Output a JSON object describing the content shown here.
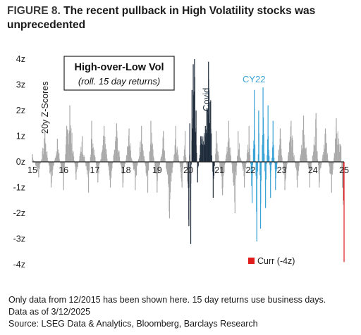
{
  "figure": {
    "label": "FIGURE 8.",
    "title": "The recent pullback in High Volatility stocks was unprecedented"
  },
  "chart_data": {
    "type": "bar",
    "inset_title": "High-over-Low Vol",
    "inset_subtitle": "(roll. 15 day returns)",
    "ylabel": "20y Z-Scores",
    "ylim": [
      -4,
      4
    ],
    "y_ticks": [
      "4z",
      "3z",
      "2z",
      "1z",
      "0z",
      "-1z",
      "-2z",
      "-3z",
      "-4z"
    ],
    "x_ticks": [
      "15",
      "16",
      "17",
      "18",
      "19",
      "20",
      "21",
      "22",
      "23",
      "24",
      "25"
    ],
    "xlim": [
      2015.0,
      2025.0
    ],
    "annotations": [
      {
        "text": "Covid",
        "color": "#1e2b3a"
      },
      {
        "text": "CY22",
        "color": "#3aa3d6"
      }
    ],
    "legend": {
      "label": "Curr (-4z)",
      "color": "#e01b1b",
      "placement": "bottom-right"
    },
    "colors": {
      "normal": "#a9a9a9",
      "covid": "#1e2b3a",
      "cy22": "#3aa3d6",
      "current": "#e01b1b"
    },
    "segments": [
      {
        "x": 2015.0,
        "y": 0.3
      },
      {
        "x": 2015.2,
        "y": -0.6
      },
      {
        "x": 2015.4,
        "y": 1.2
      },
      {
        "x": 2015.6,
        "y": -1.0
      },
      {
        "x": 2015.8,
        "y": 0.9
      },
      {
        "x": 2016.0,
        "y": -1.1
      },
      {
        "x": 2016.1,
        "y": 1.4
      },
      {
        "x": 2016.2,
        "y": 2.2
      },
      {
        "x": 2016.4,
        "y": -0.7
      },
      {
        "x": 2016.6,
        "y": 1.0
      },
      {
        "x": 2016.8,
        "y": -1.2
      },
      {
        "x": 2016.9,
        "y": 1.6
      },
      {
        "x": 2017.1,
        "y": -0.8
      },
      {
        "x": 2017.3,
        "y": 1.4
      },
      {
        "x": 2017.5,
        "y": -1.0
      },
      {
        "x": 2017.7,
        "y": 1.5
      },
      {
        "x": 2017.9,
        "y": -1.0
      },
      {
        "x": 2018.1,
        "y": 1.3
      },
      {
        "x": 2018.3,
        "y": -1.1
      },
      {
        "x": 2018.5,
        "y": 1.4
      },
      {
        "x": 2018.7,
        "y": -1.2
      },
      {
        "x": 2018.8,
        "y": 1.6
      },
      {
        "x": 2019.0,
        "y": -1.2
      },
      {
        "x": 2019.2,
        "y": 1.2
      },
      {
        "x": 2019.4,
        "y": -2.2
      },
      {
        "x": 2019.6,
        "y": 1.4
      },
      {
        "x": 2019.8,
        "y": -1.0
      },
      {
        "x": 2019.9,
        "y": 1.2
      },
      {
        "x": 2020.02,
        "y": -2.5
      },
      {
        "x": 2020.05,
        "y": 1.5
      },
      {
        "x": 2020.08,
        "y": -3.2
      },
      {
        "x": 2020.12,
        "y": 2.8
      },
      {
        "x": 2020.16,
        "y": 3.8
      },
      {
        "x": 2020.2,
        "y": 4.0
      },
      {
        "x": 2020.25,
        "y": 2.0
      },
      {
        "x": 2020.3,
        "y": -0.8
      },
      {
        "x": 2020.4,
        "y": 1.0
      },
      {
        "x": 2020.55,
        "y": 1.4
      },
      {
        "x": 2020.65,
        "y": 3.9
      },
      {
        "x": 2020.72,
        "y": 2.4
      },
      {
        "x": 2020.8,
        "y": -1.4
      },
      {
        "x": 2020.9,
        "y": 1.2
      },
      {
        "x": 2021.1,
        "y": -1.3
      },
      {
        "x": 2021.3,
        "y": 1.6
      },
      {
        "x": 2021.5,
        "y": -2.0
      },
      {
        "x": 2021.6,
        "y": 1.2
      },
      {
        "x": 2021.8,
        "y": -1.0
      },
      {
        "x": 2021.95,
        "y": 1.4
      },
      {
        "x": 2022.05,
        "y": -1.6
      },
      {
        "x": 2022.12,
        "y": 2.8
      },
      {
        "x": 2022.2,
        "y": -3.1
      },
      {
        "x": 2022.26,
        "y": 2.0
      },
      {
        "x": 2022.32,
        "y": -2.6
      },
      {
        "x": 2022.4,
        "y": 2.9
      },
      {
        "x": 2022.48,
        "y": -1.8
      },
      {
        "x": 2022.56,
        "y": 2.2
      },
      {
        "x": 2022.64,
        "y": -1.4
      },
      {
        "x": 2022.72,
        "y": 1.6
      },
      {
        "x": 2022.8,
        "y": -1.1
      },
      {
        "x": 2022.95,
        "y": 1.3
      },
      {
        "x": 2023.1,
        "y": -1.1
      },
      {
        "x": 2023.3,
        "y": 1.6
      },
      {
        "x": 2023.5,
        "y": -1.0
      },
      {
        "x": 2023.7,
        "y": 1.8
      },
      {
        "x": 2023.9,
        "y": -1.0
      },
      {
        "x": 2024.1,
        "y": 1.9
      },
      {
        "x": 2024.2,
        "y": -1.0
      },
      {
        "x": 2024.4,
        "y": 1.3
      },
      {
        "x": 2024.6,
        "y": -1.2
      },
      {
        "x": 2024.75,
        "y": 1.7
      },
      {
        "x": 2024.9,
        "y": 0.6
      },
      {
        "x": 2025.0,
        "y": -3.9
      }
    ]
  },
  "footnotes": [
    "Only data from 12/2015 has been shown here. 15 day returns use business days.",
    "Data as of 3/12/2025",
    "Source: LSEG Data & Analytics, Bloomberg, Barclays Research"
  ]
}
